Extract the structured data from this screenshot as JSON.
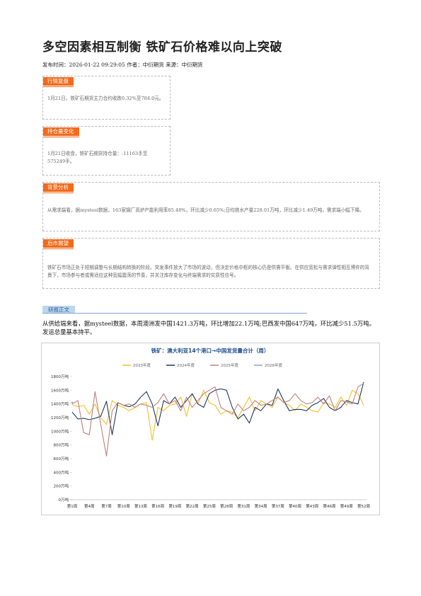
{
  "title": "多空因素相互制衡 铁矿石价格难以向上突破",
  "meta": "发布时间：2026-01-22 09:29:05 作者：中衍期货 来源：中衍期货",
  "sections": [
    {
      "heading": "行情复盘",
      "body": "1月21日，铁矿石期货主力合约收跌0.32%至784.0元。"
    },
    {
      "heading": "持仓量变化",
      "body": "1月21日收盘，铁矿石期货持仓量：-11163手至575249手。"
    },
    {
      "heading": "背景分析",
      "body": "从需求端看，据mysteel数据，163家钢厂高炉产能利用率85.48%，环比减少0.65%;日均铁水产量228.01万吨，环比减少1.49万吨，需求端小幅下降。"
    },
    {
      "heading": "后市展望",
      "body": "铁矿石市场正处于短期调整与长期结构转换的阶段。突发事件放大了市场的波动，但决定价格中枢的核心仍是供需平衡。在供应宽松与需求弹性相互博弈的背景下，市场参与者或需适应这种宽幅震荡的节奏，并关注库存变化与终端需求的实质性信号。"
    }
  ],
  "report": {
    "heading": "研报正文",
    "body": "从供给端来看，据mysteel数据，本周澳洲发中国1421.3万吨，环比增加22.1万吨;巴西发中国647万吨，环比减少51.5万吨。发运总量基本持平。"
  },
  "chart_data": {
    "type": "line",
    "title": "铁矿：澳大利亚14个港口→中国发货量合计（周）",
    "categories": [
      "第1周",
      null,
      null,
      "第4周",
      null,
      null,
      "第7周",
      null,
      null,
      "第10周",
      null,
      null,
      "第13周",
      null,
      null,
      "第16周",
      null,
      null,
      "第19周",
      null,
      null,
      "第22周",
      null,
      null,
      "第25周",
      null,
      null,
      "第28周",
      null,
      null,
      "第31周",
      null,
      null,
      "第34周",
      null,
      null,
      "第37周",
      null,
      null,
      "第40周",
      null,
      null,
      "第43周",
      null,
      null,
      "第46周",
      null,
      null,
      "第49周",
      null,
      null,
      "第52周"
    ],
    "series": [
      {
        "name": "2023年度",
        "color": "#f2c029",
        "values": [
          1390,
          1360,
          1380,
          1250,
          1400,
          1200,
          1100,
          1450,
          1380,
          1350,
          1300,
          1350,
          1400,
          1420,
          870,
          1350,
          1300,
          1380,
          1400,
          1500,
          1220,
          1550,
          1400,
          1600,
          1420,
          1380,
          1250,
          1300,
          1280,
          1200,
          1350,
          1500,
          1300,
          1450,
          1400,
          1350,
          1500,
          1420,
          1380,
          1300,
          1400,
          1350,
          1300,
          1280,
          1420,
          1400,
          1350,
          1500,
          1380,
          1600,
          1550,
          1380
        ]
      },
      {
        "name": "2024年度",
        "color": "#1f3864",
        "values": [
          1280,
          1180,
          1190,
          1170,
          1190,
          1220,
          1440,
          950,
          1420,
          1380,
          1360,
          1400,
          1500,
          1580,
          1400,
          1080,
          1450,
          1400,
          1500,
          1350,
          1450,
          1550,
          1400,
          1350,
          1550,
          1600,
          1620,
          1600,
          1350,
          1180,
          1250,
          1120,
          1350,
          1300,
          1400,
          1380,
          1620,
          1450,
          1300,
          1320,
          1320,
          1300,
          1380,
          1420,
          1480,
          1350,
          1300,
          1350,
          1450,
          1420,
          1400,
          1720
        ]
      },
      {
        "name": "2025年度",
        "color": "#c0807a",
        "values": [
          1400,
          1450,
          980,
          950,
          1580,
          1100,
          640,
          1300,
          1420,
          1380,
          1400,
          1350,
          1400,
          1380,
          1350,
          1420,
          1550,
          1400,
          1450,
          1300,
          1500,
          1350,
          1450,
          1550,
          1600,
          1650,
          1350,
          1300,
          1250,
          1400,
          1300,
          1350,
          1450,
          1380,
          1400,
          1450,
          1500,
          1420,
          1450,
          1550,
          1450,
          1400,
          1420,
          1500,
          1400,
          1520,
          1300,
          1450,
          1430,
          1400,
          1650,
          1700
        ]
      },
      {
        "name": "2026年度",
        "color": "#8ea2c6",
        "values": [
          1420,
          null,
          null,
          null,
          null,
          null,
          null,
          null,
          null,
          null,
          null,
          null,
          null,
          null,
          null,
          null,
          null,
          null,
          null,
          null,
          null,
          null,
          null,
          null,
          null,
          null,
          null,
          null,
          null,
          null,
          null,
          null,
          null,
          null,
          null,
          null,
          null,
          null,
          null,
          null,
          null,
          null,
          null,
          null,
          null,
          null,
          null,
          null,
          null,
          null,
          null,
          null
        ]
      }
    ],
    "ylim": [
      0,
      1800
    ],
    "yticks": [
      {
        "value": 0,
        "label": "0万吨"
      },
      {
        "value": 200,
        "label": "200万吨"
      },
      {
        "value": 400,
        "label": "400万吨"
      },
      {
        "value": 600,
        "label": "600万吨"
      },
      {
        "value": 800,
        "label": "800万吨"
      },
      {
        "value": 1000,
        "label": "1000万吨"
      },
      {
        "value": 1200,
        "label": "1200万吨"
      },
      {
        "value": 1400,
        "label": "1400万吨"
      },
      {
        "value": 1600,
        "label": "1600万吨"
      },
      {
        "value": 1800,
        "label": "1800万吨"
      }
    ]
  }
}
